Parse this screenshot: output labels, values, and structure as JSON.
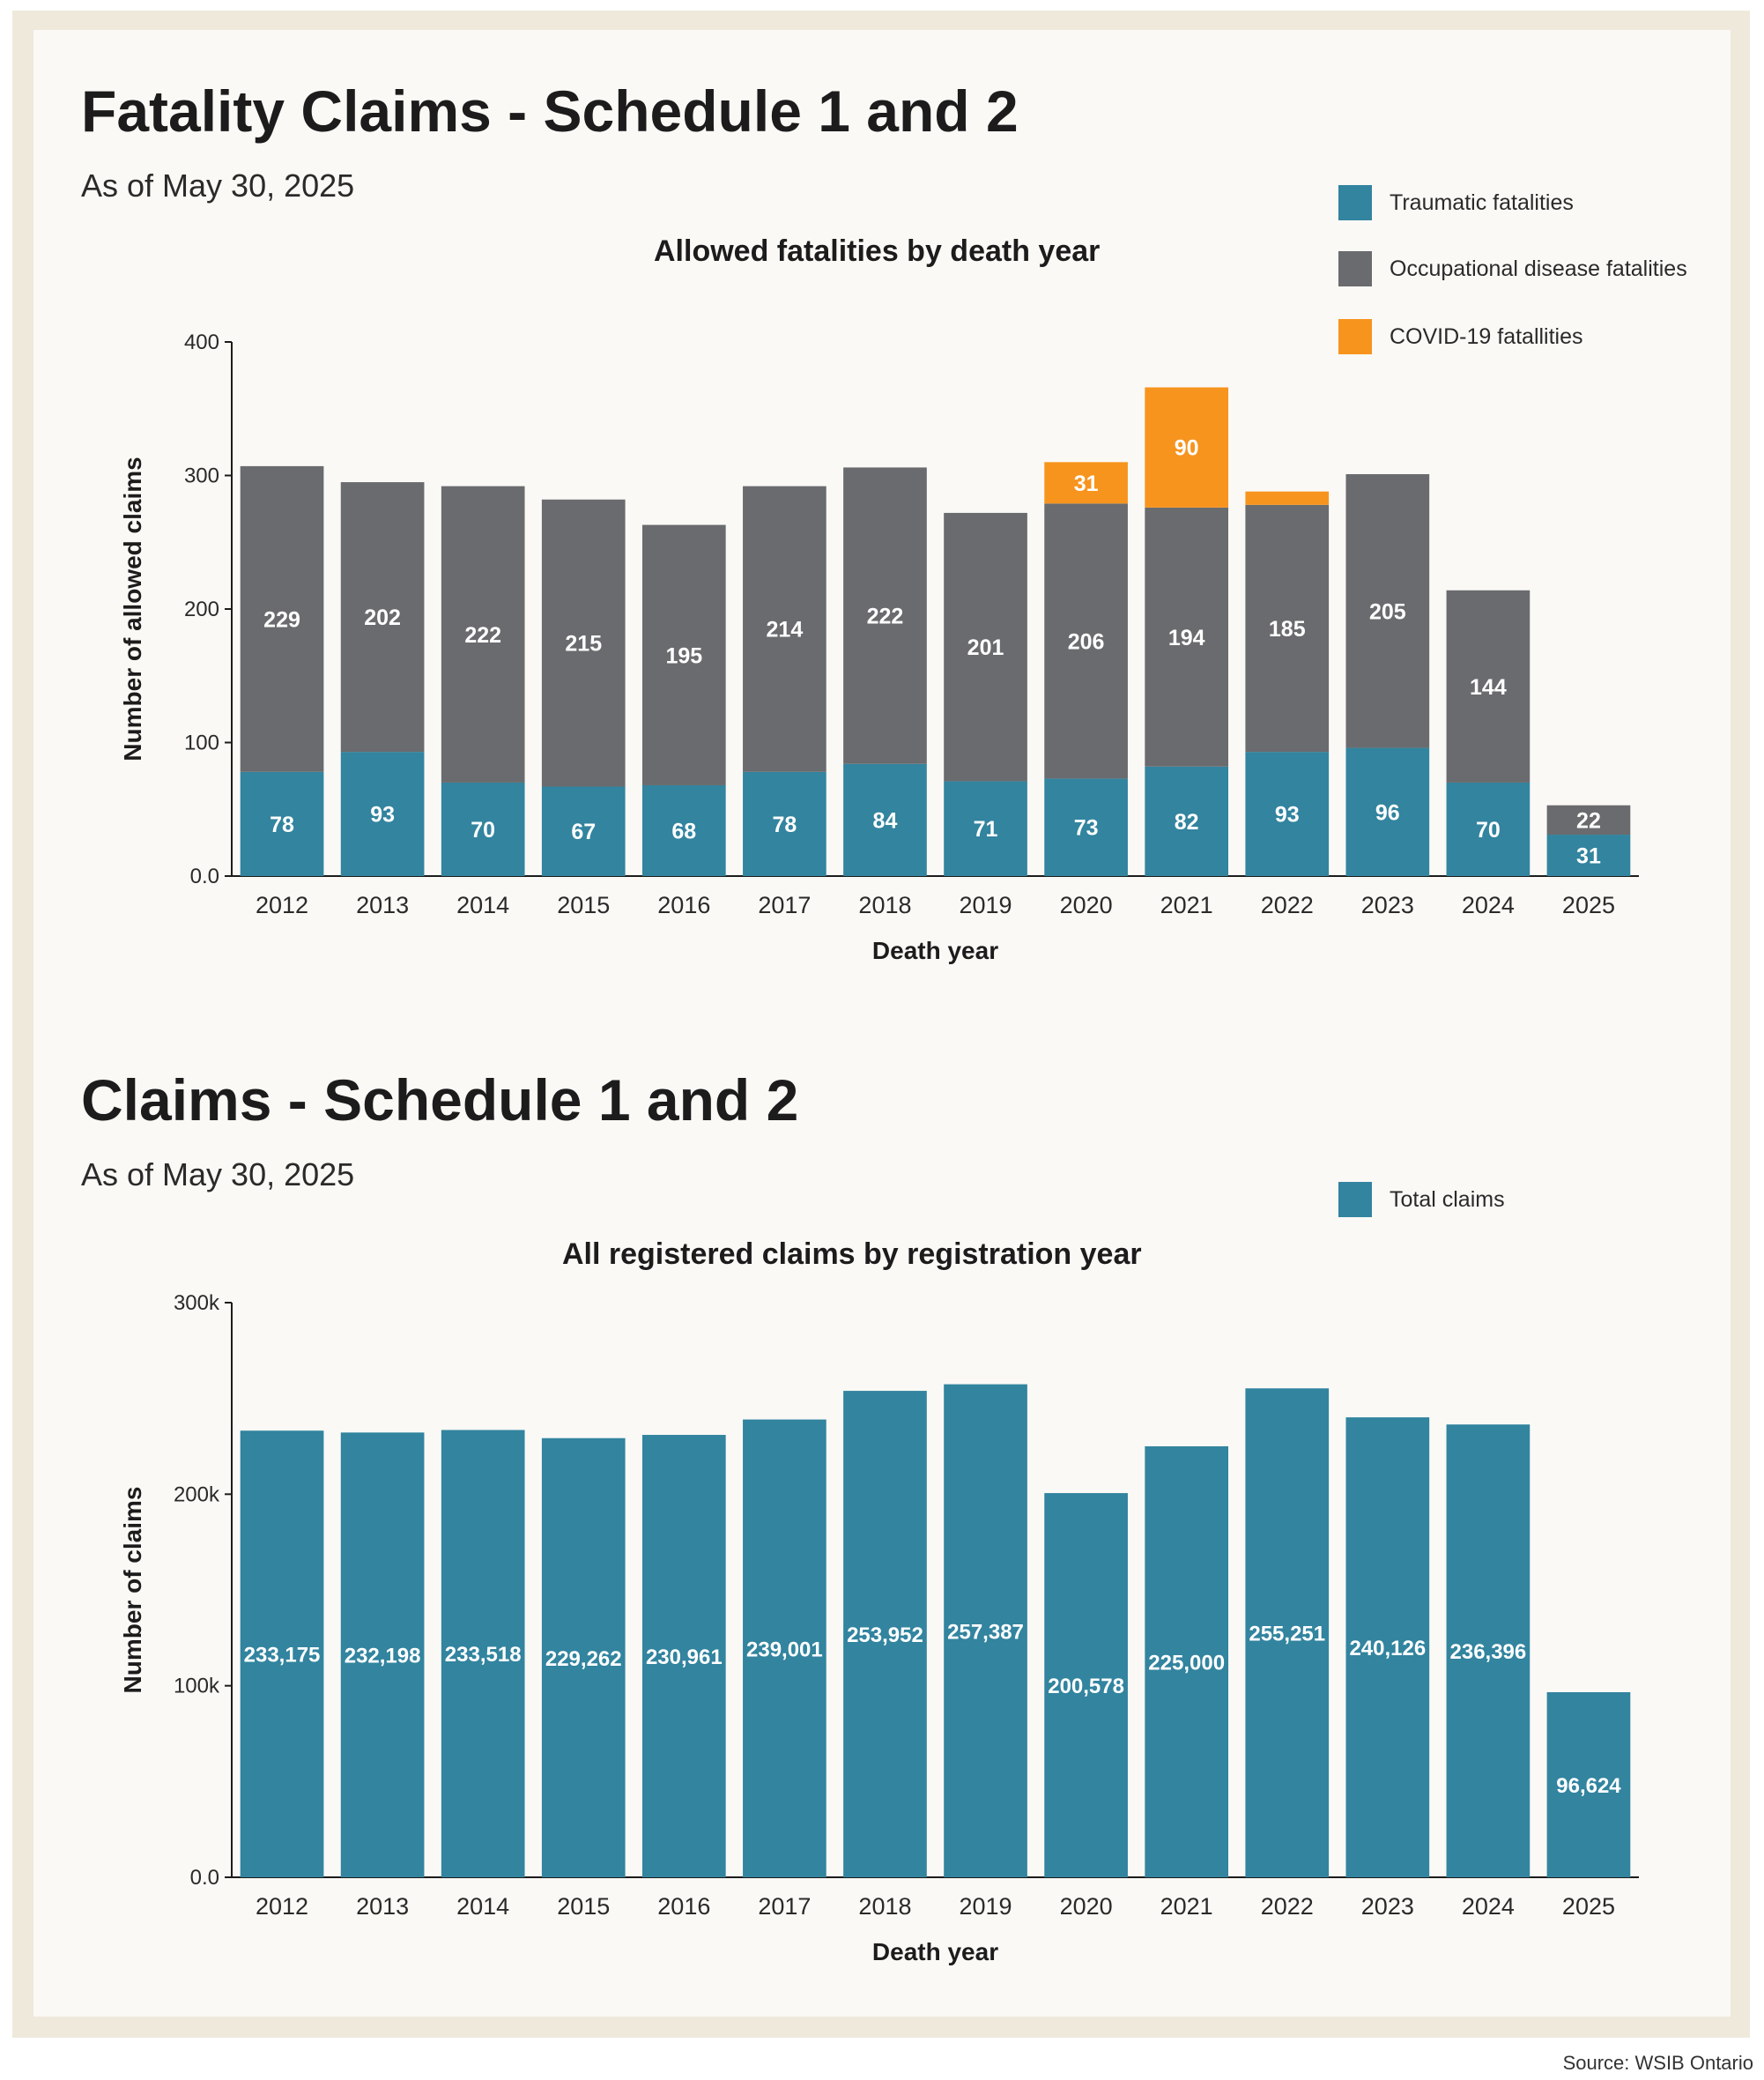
{
  "charts": [
    {
      "title": "Fatality Claims - Schedule 1 and 2",
      "subtitle": "As of May 30, 2025",
      "chart_title": "Allowed fatalities by death year",
      "legend": [
        {
          "label": "Traumatic fatalities",
          "color": "#32849f"
        },
        {
          "label": "Occupational disease fatalities",
          "color": "#6a6b6e"
        },
        {
          "label": "COVID-19 fatallities",
          "color": "#f7941d"
        }
      ]
    },
    {
      "title": "Claims - Schedule 1 and 2",
      "subtitle": "As of May 30, 2025",
      "chart_title": "All registered claims by registration year",
      "legend": [
        {
          "label": "Total claims",
          "color": "#32849f"
        }
      ]
    }
  ],
  "source": "Source: WSIB Ontario",
  "chart_data": [
    {
      "type": "bar",
      "stacked": true,
      "title": "Allowed fatalities by death year",
      "xlabel": "Death year",
      "ylabel": "Number of allowed claims",
      "ylim": [
        0,
        400
      ],
      "yticks": [
        0,
        100,
        200,
        300,
        400
      ],
      "ytick_labels": [
        "0.0",
        "100",
        "200",
        "300",
        "400"
      ],
      "categories": [
        "2012",
        "2013",
        "2014",
        "2015",
        "2016",
        "2017",
        "2018",
        "2019",
        "2020",
        "2021",
        "2022",
        "2023",
        "2024",
        "2025"
      ],
      "series": [
        {
          "name": "Traumatic fatalities",
          "color": "#32849f",
          "values": [
            78,
            93,
            70,
            67,
            68,
            78,
            84,
            71,
            73,
            82,
            93,
            96,
            70,
            31
          ],
          "labels": [
            "78",
            "93",
            "70",
            "67",
            "68",
            "78",
            "84",
            "71",
            "73",
            "82",
            "93",
            "96",
            "70",
            "31"
          ]
        },
        {
          "name": "Occupational disease fatalities",
          "color": "#6a6b6e",
          "values": [
            229,
            202,
            222,
            215,
            195,
            214,
            222,
            201,
            206,
            194,
            185,
            205,
            144,
            22
          ],
          "labels": [
            "229",
            "202",
            "222",
            "215",
            "195",
            "214",
            "222",
            "201",
            "206",
            "194",
            "185",
            "205",
            "144",
            "22"
          ]
        },
        {
          "name": "COVID-19 fatallities",
          "color": "#f7941d",
          "values": [
            0,
            0,
            0,
            0,
            0,
            0,
            0,
            0,
            31,
            90,
            10,
            0,
            0,
            0
          ],
          "labels": [
            "",
            "",
            "",
            "",
            "",
            "",
            "",
            "",
            "31",
            "90",
            "",
            "",
            "",
            ""
          ]
        }
      ],
      "legend_position": "top-right",
      "grid": false
    },
    {
      "type": "bar",
      "title": "All registered claims by registration year",
      "xlabel": "Death year",
      "ylabel": "Number of claims",
      "ylim": [
        0,
        300000
      ],
      "yticks": [
        0,
        100000,
        200000,
        300000
      ],
      "ytick_labels": [
        "0.0",
        "100k",
        "200k",
        "300k"
      ],
      "categories": [
        "2012",
        "2013",
        "2014",
        "2015",
        "2016",
        "2017",
        "2018",
        "2019",
        "2020",
        "2021",
        "2022",
        "2023",
        "2024",
        "2025"
      ],
      "series": [
        {
          "name": "Total claims",
          "color": "#32849f",
          "values": [
            233175,
            232198,
            233518,
            229262,
            230961,
            239001,
            253952,
            257387,
            200578,
            225000,
            255251,
            240126,
            236396,
            96624
          ],
          "labels": [
            "233,175",
            "232,198",
            "233,518",
            "229,262",
            "230,961",
            "239,001",
            "253,952",
            "257,387",
            "200,578",
            "225,000",
            "255,251",
            "240,126",
            "236,396",
            "96,624"
          ]
        }
      ],
      "legend_position": "top-right",
      "grid": false
    }
  ]
}
